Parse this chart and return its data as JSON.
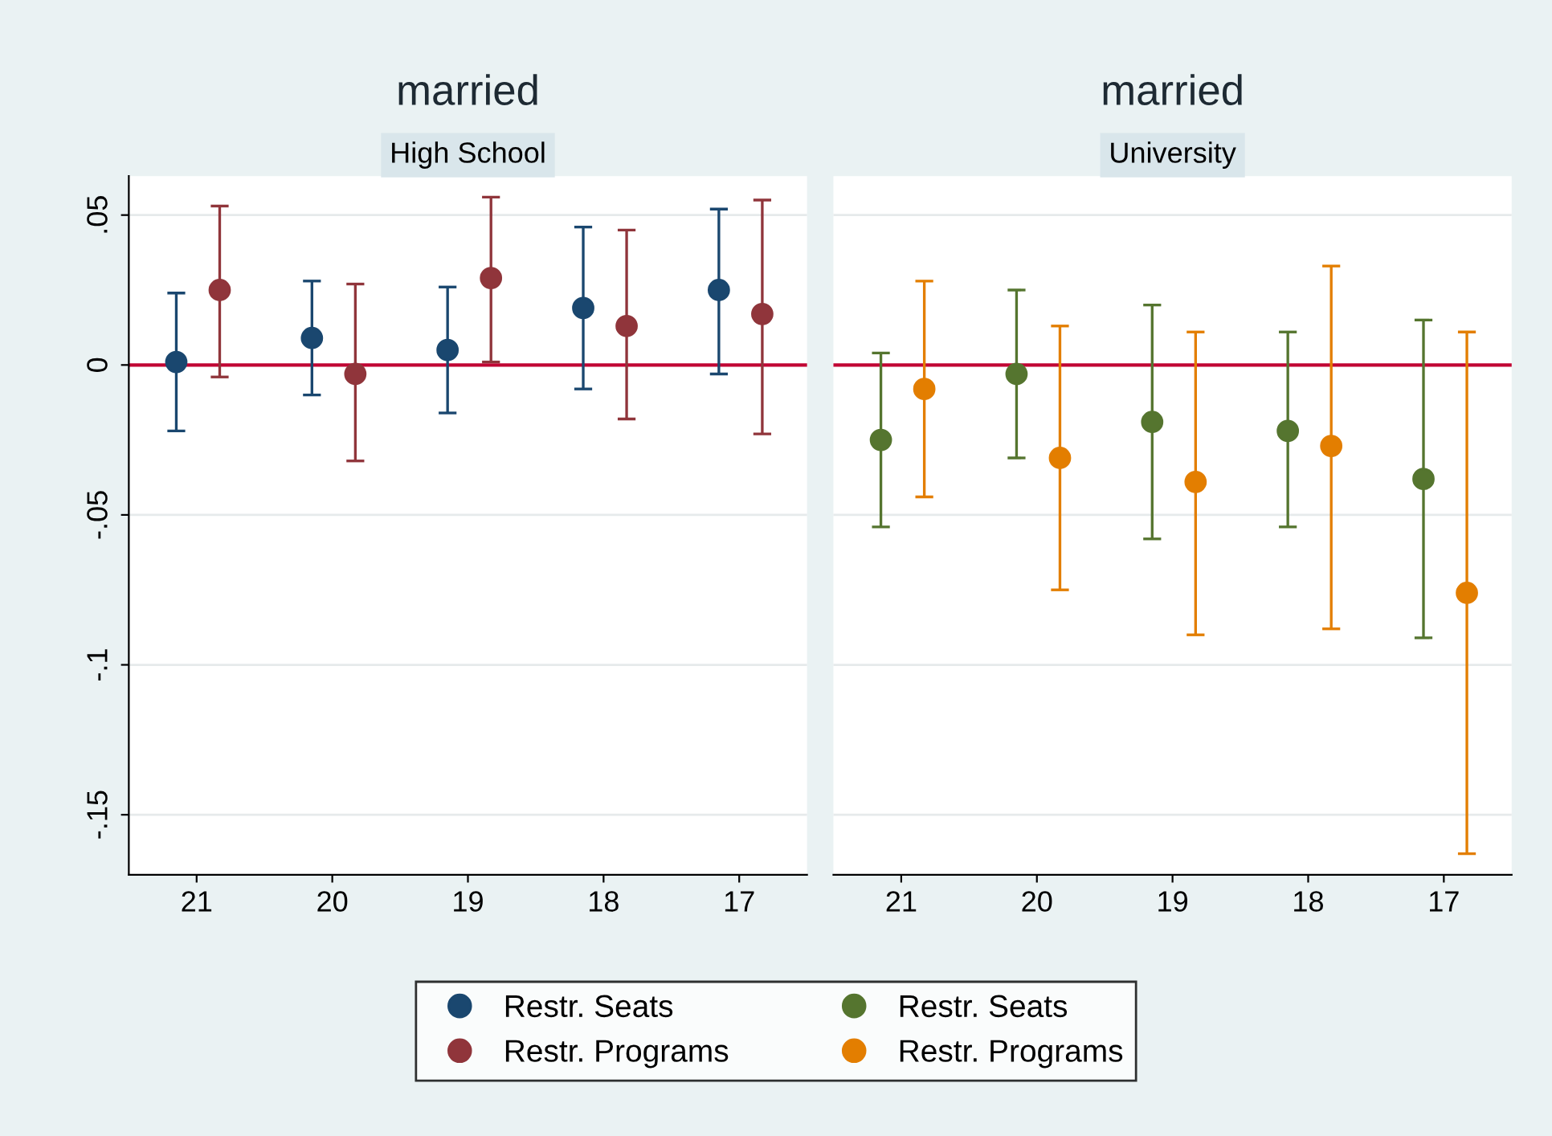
{
  "chart_data": [
    {
      "type": "scatter",
      "title": "married",
      "subtitle": "High School",
      "xlim": [
        21.5,
        16.5
      ],
      "xticks": [
        21,
        20,
        19,
        18,
        17
      ],
      "ylim": [
        -0.17,
        0.063
      ],
      "yticks": [
        {
          "value": 0.05,
          "label": ".05"
        },
        {
          "value": 0,
          "label": "0"
        },
        {
          "value": -0.05,
          "label": "-.05"
        },
        {
          "value": -0.1,
          "label": "-.1"
        },
        {
          "value": -0.15,
          "label": "-.15"
        }
      ],
      "grid": "y",
      "legend": "bottom",
      "marker": "circle",
      "ref_lines": [
        {
          "axis": "y",
          "value": 0,
          "color": "#c10534"
        }
      ],
      "series": [
        {
          "name": "Restr. Seats",
          "color": "#1a476f",
          "x": [
            21.15,
            20.15,
            19.15,
            18.15,
            17.15
          ],
          "values": [
            0.001,
            0.009,
            0.005,
            0.019,
            0.025
          ],
          "errors": [
            [
              -0.022,
              0.024
            ],
            [
              -0.01,
              0.028
            ],
            [
              -0.016,
              0.026
            ],
            [
              -0.008,
              0.046
            ],
            [
              -0.003,
              0.052
            ]
          ]
        },
        {
          "name": "Restr. Programs",
          "color": "#90353b",
          "x": [
            20.83,
            19.83,
            18.83,
            17.83,
            16.83
          ],
          "values": [
            0.025,
            -0.003,
            0.029,
            0.013,
            0.017
          ],
          "errors": [
            [
              -0.004,
              0.053
            ],
            [
              -0.032,
              0.027
            ],
            [
              0.001,
              0.056
            ],
            [
              -0.018,
              0.045
            ],
            [
              -0.023,
              0.055
            ]
          ]
        }
      ]
    },
    {
      "type": "scatter",
      "title": "married",
      "subtitle": "University",
      "xlim": [
        21.5,
        16.5
      ],
      "xticks": [
        21,
        20,
        19,
        18,
        17
      ],
      "ylim": [
        -0.17,
        0.063
      ],
      "yticks": [
        {
          "value": 0.05,
          "label": null
        },
        {
          "value": 0,
          "label": null
        },
        {
          "value": -0.05,
          "label": null
        },
        {
          "value": -0.1,
          "label": null
        },
        {
          "value": -0.15,
          "label": null
        }
      ],
      "tick_labels": "x",
      "grid": "y",
      "legend": "bottom",
      "marker": "circle",
      "ref_lines": [
        {
          "axis": "y",
          "value": 0,
          "color": "#c10534"
        }
      ],
      "series": [
        {
          "name": "Restr. Seats",
          "color": "#55752f",
          "x": [
            21.15,
            20.15,
            19.15,
            18.15,
            17.15
          ],
          "values": [
            -0.025,
            -0.003,
            -0.019,
            -0.022,
            -0.038
          ],
          "errors": [
            [
              -0.054,
              0.004
            ],
            [
              -0.031,
              0.025
            ],
            [
              -0.058,
              0.02
            ],
            [
              -0.054,
              0.011
            ],
            [
              -0.091,
              0.015
            ]
          ]
        },
        {
          "name": "Restr. Programs",
          "color": "#e37e00",
          "x": [
            20.83,
            19.83,
            18.83,
            17.83,
            16.83
          ],
          "values": [
            -0.008,
            -0.031,
            -0.039,
            -0.027,
            -0.076
          ],
          "errors": [
            [
              -0.044,
              0.028
            ],
            [
              -0.075,
              0.013
            ],
            [
              -0.09,
              0.011
            ],
            [
              -0.088,
              0.033
            ],
            [
              -0.163,
              0.011
            ]
          ]
        }
      ]
    }
  ]
}
